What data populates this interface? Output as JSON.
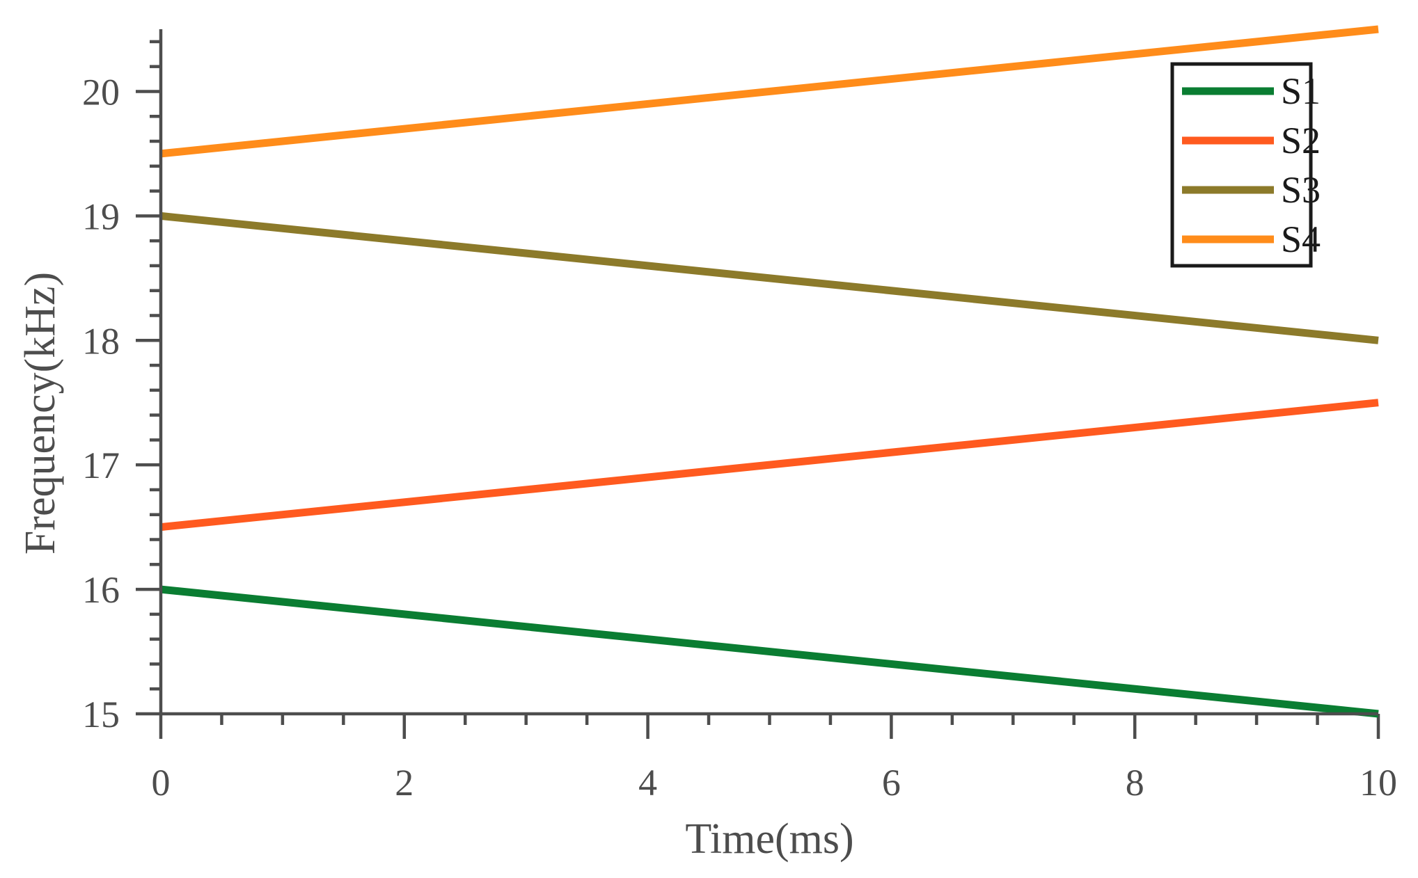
{
  "chart_data": {
    "type": "line",
    "title": "",
    "xlabel": "Time(ms)",
    "ylabel": "Frequency(kHz)",
    "xlim": [
      0,
      10
    ],
    "ylim": [
      15,
      20.5
    ],
    "x_ticks": [
      0,
      2,
      4,
      6,
      8,
      10
    ],
    "x_tick_labels": [
      "0",
      "2",
      "4",
      "6",
      "8",
      "10"
    ],
    "x_minor_step": 0.5,
    "y_ticks": [
      15,
      16,
      17,
      18,
      19,
      20
    ],
    "y_tick_labels": [
      "15",
      "16",
      "17",
      "18",
      "19",
      "20"
    ],
    "y_minor_step": 0.2,
    "grid": false,
    "legend_position": "top-right",
    "series": [
      {
        "name": "S1",
        "color": "#0a7d32",
        "x": [
          0,
          10
        ],
        "y": [
          16,
          15
        ]
      },
      {
        "name": "S2",
        "color": "#ff5a1f",
        "x": [
          0,
          10
        ],
        "y": [
          16.5,
          17.5
        ]
      },
      {
        "name": "S3",
        "color": "#8c7a2a",
        "x": [
          0,
          10
        ],
        "y": [
          19,
          18
        ]
      },
      {
        "name": "S4",
        "color": "#ff8c1a",
        "x": [
          0,
          10
        ],
        "y": [
          19.5,
          20.5
        ]
      }
    ]
  }
}
